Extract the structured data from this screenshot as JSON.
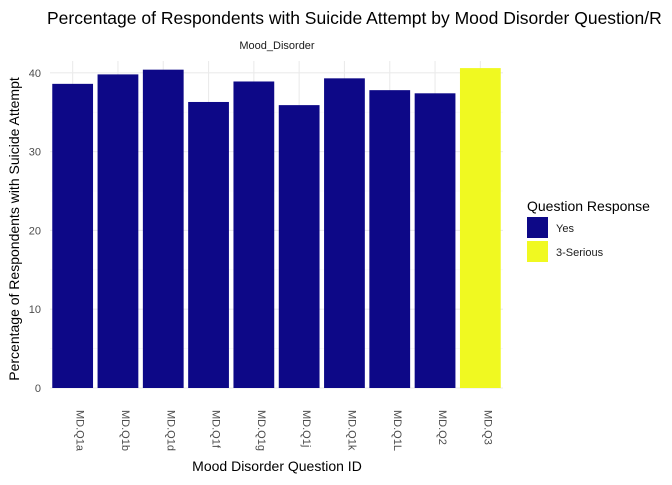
{
  "chart_data": {
    "type": "bar",
    "title": "Percentage of Respondents with Suicide Attempt by Mood Disorder Question/R",
    "facet_label": "Mood_Disorder",
    "xlabel": "Mood Disorder Question ID",
    "ylabel": "Percentage of Respondents with Suicide Attempt",
    "categories": [
      "MD.Q1a",
      "MD.Q1b",
      "MD.Q1d",
      "MD.Q1f",
      "MD.Q1g",
      "MD.Q1j",
      "MD.Q1k",
      "MD.Q1L",
      "MD.Q2",
      "MD.Q3"
    ],
    "values": [
      38.6,
      39.8,
      40.4,
      36.3,
      38.9,
      35.9,
      39.3,
      37.8,
      37.4,
      40.6
    ],
    "fill_group": [
      "Yes",
      "Yes",
      "Yes",
      "Yes",
      "Yes",
      "Yes",
      "Yes",
      "Yes",
      "Yes",
      "3-Serious"
    ],
    "ylim": [
      0,
      41.5
    ],
    "y_ticks": [
      0,
      10,
      20,
      30,
      40
    ],
    "grid": true,
    "legend": {
      "title": "Question Response",
      "placement": "right",
      "entries": [
        {
          "label": "Yes",
          "color": "#0d0887"
        },
        {
          "label": "3-Serious",
          "color": "#f0f921"
        }
      ]
    },
    "colors": {
      "Yes": "#0d0887",
      "3-Serious": "#f0f921",
      "grid_major": "#ebebeb",
      "grid_minor": "#f5f5f5",
      "text": "#1a1a1a",
      "tick_text": "#4d4d4d"
    }
  }
}
